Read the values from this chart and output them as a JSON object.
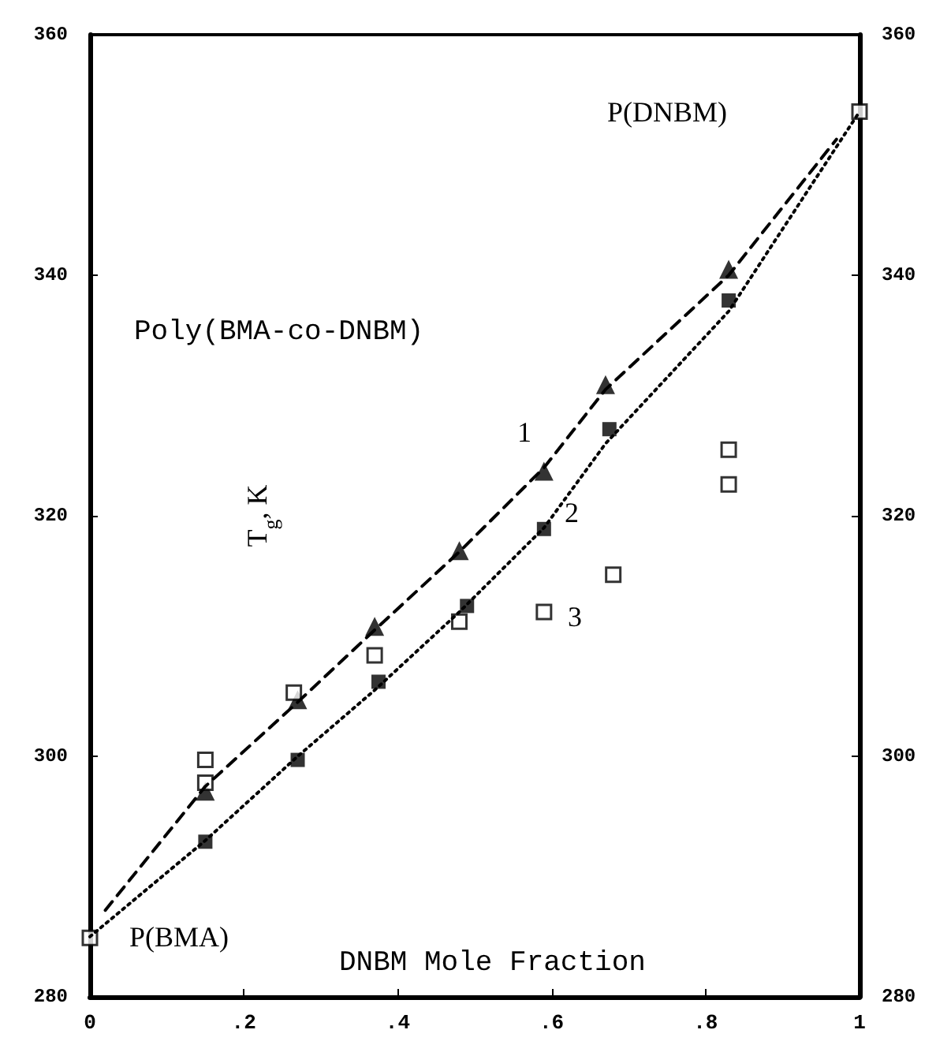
{
  "chart_data": {
    "type": "scatter",
    "title": "Poly(BMA-co-DNBM)",
    "xlabel": "DNBM Mole Fraction",
    "ylabel": "T$_{g}$, K",
    "xlim": [
      0,
      1
    ],
    "xticks": [
      0,
      {
        "value": 0.2,
        "label": ".2"
      },
      {
        "value": 0.4,
        "label": ".4"
      },
      {
        "value": 0.6,
        "label": ".6"
      },
      {
        "value": 0.8,
        "label": ".8"
      },
      1
    ],
    "ylim": [
      280,
      360
    ],
    "yticks": [
      280,
      300,
      320,
      340,
      360
    ],
    "y2lim": [
      280,
      360
    ],
    "y2ticks": [
      280,
      300,
      320,
      340,
      360
    ],
    "grid": false,
    "series": [
      {
        "type": "line",
        "color": "#000000",
        "line_style": "dashed",
        "marker": "none",
        "x": [
          0.02,
          0.15,
          0.27,
          0.37,
          0.48,
          0.59,
          0.67,
          0.83,
          0.97
        ],
        "values": [
          287.2,
          297.5,
          304.5,
          310.5,
          317,
          324,
          330.5,
          340,
          351.3
        ]
      },
      {
        "type": "line",
        "color": "#000000",
        "line_style": "dotted",
        "marker": "none",
        "x": [
          0,
          0.15,
          0.27,
          0.37,
          0.48,
          0.59,
          0.67,
          0.83,
          1
        ],
        "values": [
          285,
          293,
          300,
          305.5,
          312,
          319,
          326,
          337,
          353.6
        ]
      },
      {
        "color": "#000000",
        "marker": "triangle",
        "x": [
          0.15,
          0.27,
          0.37,
          0.48,
          0.59,
          0.67,
          0.83
        ],
        "values": [
          297.1,
          304.7,
          310.8,
          317.1,
          323.7,
          330.9,
          340.5
        ]
      },
      {
        "color": "#000000",
        "marker": "square",
        "x": [
          0.15,
          0.27,
          0.375,
          0.49,
          0.59,
          0.675,
          0.83
        ],
        "values": [
          292.9,
          299.7,
          306.2,
          312.5,
          318.9,
          327.2,
          337.9
        ]
      },
      {
        "color": "#000000",
        "marker": "square",
        "x": [
          0,
          0.15,
          0.15,
          0.265,
          0.37,
          0.48,
          0.59,
          0.68,
          0.83,
          0.83,
          1
        ],
        "values": [
          284.9,
          299.7,
          297.8,
          305.3,
          308.4,
          311.2,
          312,
          315.1,
          325.5,
          322.6,
          353.6
        ]
      }
    ],
    "annotations": [
      "1",
      "2",
      "3",
      "P(BMA)",
      "P(DNBM)"
    ]
  }
}
